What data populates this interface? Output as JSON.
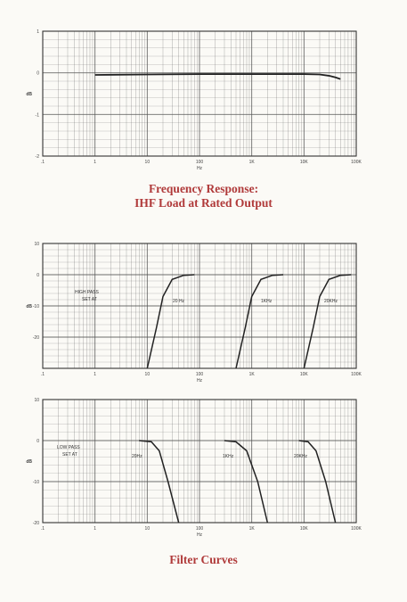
{
  "captions": {
    "freq_line1": "Frequency Response:",
    "freq_line2": "IHF Load at Rated Output",
    "filter": "Filter Curves"
  },
  "colors": {
    "caption": "#b03a3a",
    "grid": "#555555",
    "curve": "#222222"
  },
  "chart_data": [
    {
      "type": "line",
      "title": "Frequency Response: IHF Load at Rated Output",
      "xlabel": "Hz",
      "ylabel": "dB",
      "x_scale": "log",
      "xlim": [
        0.1,
        100000
      ],
      "ylim": [
        -2,
        1
      ],
      "x_ticks": [
        ".1",
        "1",
        "10",
        "100",
        "1K",
        "10K",
        "100K"
      ],
      "y_ticks": [
        "1",
        "0",
        "-1",
        "-2"
      ],
      "grid": true,
      "series": [
        {
          "x": [
            1,
            10,
            100,
            1000,
            10000,
            20000,
            30000,
            40000,
            50000
          ],
          "y": [
            -0.05,
            -0.04,
            -0.03,
            -0.03,
            -0.03,
            -0.04,
            -0.07,
            -0.11,
            -0.15
          ]
        }
      ]
    },
    {
      "type": "line",
      "xlabel": "Hz",
      "ylabel": "dB",
      "x_scale": "log",
      "xlim": [
        0.1,
        100000
      ],
      "ylim": [
        -30,
        10
      ],
      "x_ticks": [
        ".1",
        "1",
        "10",
        "100",
        "1K",
        "10K",
        "100K"
      ],
      "y_ticks": [
        "10",
        "0",
        "-10",
        "-20"
      ],
      "grid": true,
      "annotations": [
        "HIGH PASS",
        "SET AT",
        "20 Hz",
        "1KHz",
        "20KHz"
      ],
      "series": [
        {
          "x": [
            10,
            15,
            20,
            30,
            50,
            80
          ],
          "y": [
            -30,
            -17,
            -7,
            -1.5,
            -0.2,
            0
          ]
        },
        {
          "x": [
            500,
            750,
            1000,
            1500,
            2500,
            4000
          ],
          "y": [
            -30,
            -17,
            -7,
            -1.5,
            -0.2,
            0
          ]
        },
        {
          "x": [
            10000,
            15000,
            20000,
            30000,
            50000,
            80000
          ],
          "y": [
            -30,
            -17,
            -7,
            -1.5,
            -0.2,
            0
          ]
        }
      ]
    },
    {
      "type": "line",
      "xlabel": "Hz",
      "ylabel": "dB",
      "x_scale": "log",
      "xlim": [
        0.1,
        100000
      ],
      "ylim": [
        -20,
        10
      ],
      "x_ticks": [
        ".1",
        "1",
        "10",
        "100",
        "1K",
        "10K",
        "100K"
      ],
      "y_ticks": [
        "10",
        "0",
        "-10",
        "-20"
      ],
      "grid": true,
      "annotations": [
        "LOW PASS",
        "SET AT",
        "20Hz",
        "1KHz",
        "20KHz"
      ],
      "series": [
        {
          "x": [
            7,
            12,
            17,
            25,
            40
          ],
          "y": [
            0,
            -0.3,
            -2.5,
            -10,
            -20
          ]
        },
        {
          "x": [
            300,
            500,
            800,
            1300,
            2000
          ],
          "y": [
            0,
            -0.3,
            -2.5,
            -10,
            -20
          ]
        },
        {
          "x": [
            8000,
            12000,
            17000,
            26000,
            40000
          ],
          "y": [
            0,
            -0.3,
            -2.5,
            -10,
            -20
          ]
        }
      ]
    }
  ]
}
